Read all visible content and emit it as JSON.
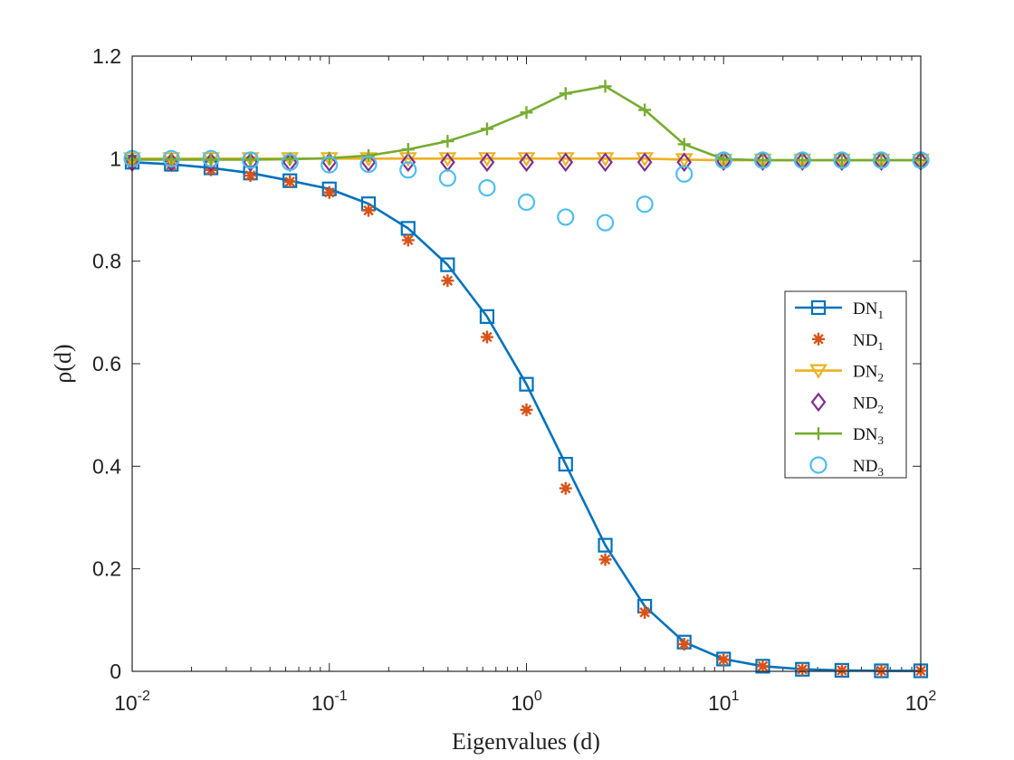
{
  "chart_data": {
    "type": "line",
    "xscale": "log",
    "xlim": [
      0.01,
      100
    ],
    "ylim": [
      0,
      1.2
    ],
    "xticks": [
      {
        "value": 0.01,
        "base": "10",
        "exp": "-2"
      },
      {
        "value": 0.1,
        "base": "10",
        "exp": "-1"
      },
      {
        "value": 1,
        "base": "10",
        "exp": "0"
      },
      {
        "value": 10,
        "base": "10",
        "exp": "1"
      },
      {
        "value": 100,
        "base": "10",
        "exp": "2"
      }
    ],
    "yticks": [
      {
        "value": 0,
        "label": "0"
      },
      {
        "value": 0.2,
        "label": "0.2"
      },
      {
        "value": 0.4,
        "label": "0.4"
      },
      {
        "value": 0.6,
        "label": "0.6"
      },
      {
        "value": 0.8,
        "label": "0.8"
      },
      {
        "value": 1,
        "label": "1"
      },
      {
        "value": 1.2,
        "label": "1.2"
      }
    ],
    "xlabel": "Eigenvalues (d)",
    "ylabel": "ρ(d)",
    "legend_position": "right",
    "x": [
      0.01,
      0.0158,
      0.0251,
      0.0398,
      0.0631,
      0.1,
      0.158,
      0.251,
      0.398,
      0.631,
      1,
      1.58,
      2.51,
      3.98,
      6.31,
      10,
      15.8,
      25.1,
      39.8,
      63.1,
      100
    ],
    "series": [
      {
        "name": "DN",
        "sub": "1",
        "color": "#0072BD",
        "marker": "square",
        "line": true,
        "values": [
          0.993,
          0.989,
          0.982,
          0.972,
          0.957,
          0.941,
          0.912,
          0.864,
          0.793,
          0.692,
          0.56,
          0.404,
          0.246,
          0.127,
          0.057,
          0.024,
          0.01,
          0.004,
          0.002,
          0.001,
          0.001
        ]
      },
      {
        "name": "ND",
        "sub": "1",
        "color": "#D95319",
        "marker": "asterisk",
        "line": false,
        "values": [
          0.993,
          0.988,
          0.978,
          0.967,
          0.955,
          0.934,
          0.899,
          0.841,
          0.762,
          0.652,
          0.51,
          0.357,
          0.218,
          0.115,
          0.053,
          0.023,
          0.01,
          0.004,
          0.002,
          0.001,
          0.001
        ]
      },
      {
        "name": "DN",
        "sub": "2",
        "color": "#EDB120",
        "marker": "triangle-down",
        "line": true,
        "values": [
          1.0,
          1.0,
          1.0,
          1.0,
          1.0,
          1.0,
          1.0,
          1.0,
          1.0,
          1.0,
          1.0,
          1.0,
          1.0,
          1.0,
          0.998,
          0.997,
          0.997,
          0.997,
          0.997,
          0.997,
          0.997
        ]
      },
      {
        "name": "ND",
        "sub": "2",
        "color": "#7E2F8E",
        "marker": "diamond",
        "line": false,
        "values": [
          0.993,
          0.993,
          0.993,
          0.993,
          0.993,
          0.993,
          0.993,
          0.993,
          0.993,
          0.993,
          0.993,
          0.993,
          0.993,
          0.993,
          0.993,
          0.995,
          0.995,
          0.995,
          0.995,
          0.995,
          0.995
        ]
      },
      {
        "name": "DN",
        "sub": "3",
        "color": "#77AC30",
        "marker": "plus",
        "line": true,
        "values": [
          0.998,
          0.998,
          0.998,
          0.998,
          0.999,
          1.001,
          1.006,
          1.018,
          1.034,
          1.058,
          1.09,
          1.127,
          1.141,
          1.095,
          1.028,
          0.999,
          0.997,
          0.997,
          0.997,
          0.997,
          0.997
        ]
      },
      {
        "name": "ND",
        "sub": "3",
        "color": "#4DBEEE",
        "marker": "circle",
        "line": false,
        "values": [
          1.0,
          1.0,
          1.0,
          0.997,
          0.993,
          0.988,
          0.989,
          0.978,
          0.962,
          0.943,
          0.915,
          0.886,
          0.875,
          0.911,
          0.97,
          0.997,
          0.997,
          0.997,
          0.997,
          0.997,
          0.997
        ]
      }
    ]
  }
}
